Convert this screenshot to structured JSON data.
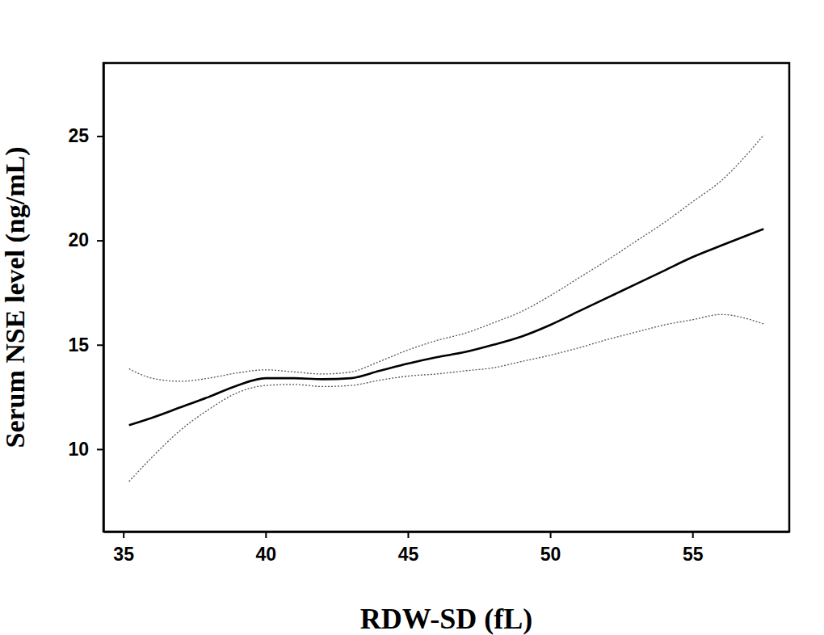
{
  "chart_data": {
    "type": "line",
    "x_label": "RDW-SD (fL)",
    "y_label": "Serum NSE level (ng/mL)",
    "x": [
      35.2,
      36,
      37,
      38,
      39,
      40,
      41,
      42,
      43,
      44,
      45,
      46,
      47,
      48,
      49,
      50,
      51,
      52,
      53,
      54,
      55,
      56,
      57.5
    ],
    "series": [
      {
        "color": "#000000",
        "line_style": "solid",
        "values": [
          11.15,
          11.5,
          12.0,
          12.5,
          13.05,
          13.4,
          13.4,
          13.35,
          13.4,
          13.75,
          14.1,
          14.4,
          14.65,
          15.0,
          15.4,
          15.95,
          16.6,
          17.25,
          17.9,
          18.55,
          19.2,
          19.75,
          20.55
        ]
      },
      {
        "color": "#555555",
        "line_style": "dotted",
        "values": [
          13.85,
          13.4,
          13.25,
          13.4,
          13.65,
          13.8,
          13.7,
          13.6,
          13.7,
          14.2,
          14.75,
          15.2,
          15.55,
          16.05,
          16.6,
          17.35,
          18.2,
          19.05,
          19.95,
          20.85,
          21.85,
          22.85,
          25.05
        ]
      },
      {
        "color": "#555555",
        "line_style": "dotted",
        "values": [
          8.45,
          9.6,
          10.9,
          11.9,
          12.7,
          13.05,
          13.1,
          13.0,
          13.05,
          13.3,
          13.5,
          13.6,
          13.75,
          13.9,
          14.2,
          14.5,
          14.85,
          15.25,
          15.6,
          15.95,
          16.2,
          16.45,
          16.0
        ]
      }
    ],
    "xlim": [
      34.3,
      58.4
    ],
    "ylim": [
      6.05,
      28.5
    ],
    "xticks": [
      35,
      40,
      45,
      50,
      55
    ],
    "yticks": [
      10,
      15,
      20,
      25
    ],
    "grid": false
  }
}
